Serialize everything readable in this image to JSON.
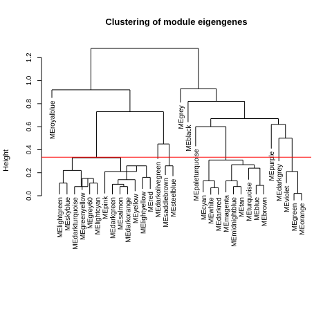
{
  "chart_data": {
    "type": "dendrogram",
    "title": "Clustering of module eigengenes",
    "ylabel": "Height",
    "xlabel": "",
    "ylim": [
      0,
      1.3
    ],
    "yticks": [
      0.0,
      0.2,
      0.4,
      0.6,
      0.8,
      1.0,
      1.2
    ],
    "ytick_labels": [
      "0.0",
      "0.2",
      "0.4",
      "0.6",
      "0.8",
      "1.0",
      "1.2"
    ],
    "cut_height": 0.335,
    "cut_color": "#ff0000",
    "leaves": [
      "MEroyalblue",
      "MElightgreen",
      "MEskyblue",
      "MEdarkturquoise",
      "MEgreenyellow",
      "MEgrey60",
      "MElightcyan",
      "MEpink",
      "MEdarkgreen",
      "MEsalmon",
      "MEdarkorange",
      "MEyellow",
      "MElightyellow",
      "MEred",
      "MEdarkolivegreen",
      "MEsaddlebrown",
      "MEsteelblue",
      "MEgrey",
      "MEblack",
      "MEpaleturquoise",
      "MEcyan",
      "MEwhite",
      "MEdarkred",
      "MEmagenta",
      "MEmidnightblue",
      "MEtan",
      "MEturquoise",
      "MEblue",
      "MEbrown",
      "MEpurple",
      "MEdarkgrey",
      "MEviolet",
      "MEgreen",
      "MEorange"
    ],
    "merges": [
      {
        "id": "A1",
        "height": 0.11,
        "children": [
          "MElightgreen",
          "MEskyblue"
        ]
      },
      {
        "id": "A2",
        "height": 0.11,
        "children": [
          "MEgrey60",
          "MElightcyan"
        ]
      },
      {
        "id": "A3",
        "height": 0.15,
        "children": [
          "MEgreenyellow",
          "A2"
        ]
      },
      {
        "id": "A4",
        "height": 0.08,
        "children": [
          "MEdarkturquoise",
          "A3"
        ]
      },
      {
        "id": "A5",
        "height": 0.22,
        "children": [
          "A1",
          "A4"
        ]
      },
      {
        "id": "B1",
        "height": 0.08,
        "children": [
          "MEsalmon",
          "MEdarkorange"
        ]
      },
      {
        "id": "B2",
        "height": 0.1,
        "children": [
          "MEdarkgreen",
          "B1"
        ]
      },
      {
        "id": "B3",
        "height": 0.14,
        "children": [
          "MEyellow",
          "B2"
        ]
      },
      {
        "id": "B4",
        "height": 0.16,
        "children": [
          "MElightyellow",
          "MEred"
        ]
      },
      {
        "id": "B5",
        "height": 0.26,
        "children": [
          "B3",
          "B4"
        ]
      },
      {
        "id": "C1",
        "height": 0.21,
        "children": [
          "MEpink",
          "B5"
        ]
      },
      {
        "id": "C2",
        "height": 0.33,
        "children": [
          "A5",
          "C1"
        ]
      },
      {
        "id": "D1",
        "height": 0.26,
        "children": [
          "MEsaddlebrown",
          "MEsteelblue"
        ]
      },
      {
        "id": "D2",
        "height": 0.45,
        "children": [
          "MEdarkolivegreen",
          "D1"
        ]
      },
      {
        "id": "D3",
        "height": 0.73,
        "children": [
          "C2",
          "D2"
        ]
      },
      {
        "id": "D4",
        "height": 0.92,
        "children": [
          "MEroyalblue",
          "D3"
        ]
      },
      {
        "id": "E1",
        "height": 0.07,
        "children": [
          "MEwhite",
          "MEdarkred"
        ]
      },
      {
        "id": "E2",
        "height": 0.13,
        "children": [
          "MEcyan",
          "E1"
        ]
      },
      {
        "id": "E3",
        "height": 0.08,
        "children": [
          "MEmidnightblue",
          "MEtan"
        ]
      },
      {
        "id": "E4",
        "height": 0.13,
        "children": [
          "MEmagenta",
          "E3"
        ]
      },
      {
        "id": "E5",
        "height": 0.09,
        "children": [
          "MEblue",
          "MEbrown"
        ]
      },
      {
        "id": "E6",
        "height": 0.24,
        "children": [
          "MEturquoise",
          "E5"
        ]
      },
      {
        "id": "E7",
        "height": 0.27,
        "children": [
          "E4",
          "E6"
        ]
      },
      {
        "id": "E8",
        "height": 0.31,
        "children": [
          "E2",
          "E7"
        ]
      },
      {
        "id": "E9",
        "height": 0.6,
        "children": [
          "MEpaleturquoise",
          "E8"
        ]
      },
      {
        "id": "F1",
        "height": 0.02,
        "children": [
          "MEgreen",
          "MEorange"
        ]
      },
      {
        "id": "F2",
        "height": 0.21,
        "children": [
          "MEviolet",
          "F1"
        ]
      },
      {
        "id": "F3",
        "height": 0.5,
        "children": [
          "MEdarkgrey",
          "F2"
        ]
      },
      {
        "id": "F4",
        "height": 0.62,
        "children": [
          "MEpurple",
          "F3"
        ]
      },
      {
        "id": "G1",
        "height": 0.67,
        "children": [
          "E9",
          "F4"
        ]
      },
      {
        "id": "G2",
        "height": 0.82,
        "children": [
          "MEblack",
          "G1"
        ]
      },
      {
        "id": "G3",
        "height": 0.93,
        "children": [
          "MEgrey",
          "G2"
        ]
      },
      {
        "id": "ROOT",
        "height": 1.28,
        "children": [
          "D4",
          "G3"
        ]
      }
    ],
    "leaf_heights": {
      "MEroyalblue": 0.85,
      "MEgrey": 0.81,
      "MEblack": 0.64,
      "MEpaleturquoise": 0.43,
      "MEpurple": 0.41,
      "MEdarkgrey": 0.3,
      "MEdarkolivegreen": 0.32,
      "MEsaddlebrown": 0.18,
      "MEsteelblue": 0.17,
      "MEpink": 0.02
    },
    "grid": false,
    "legend": "none"
  }
}
